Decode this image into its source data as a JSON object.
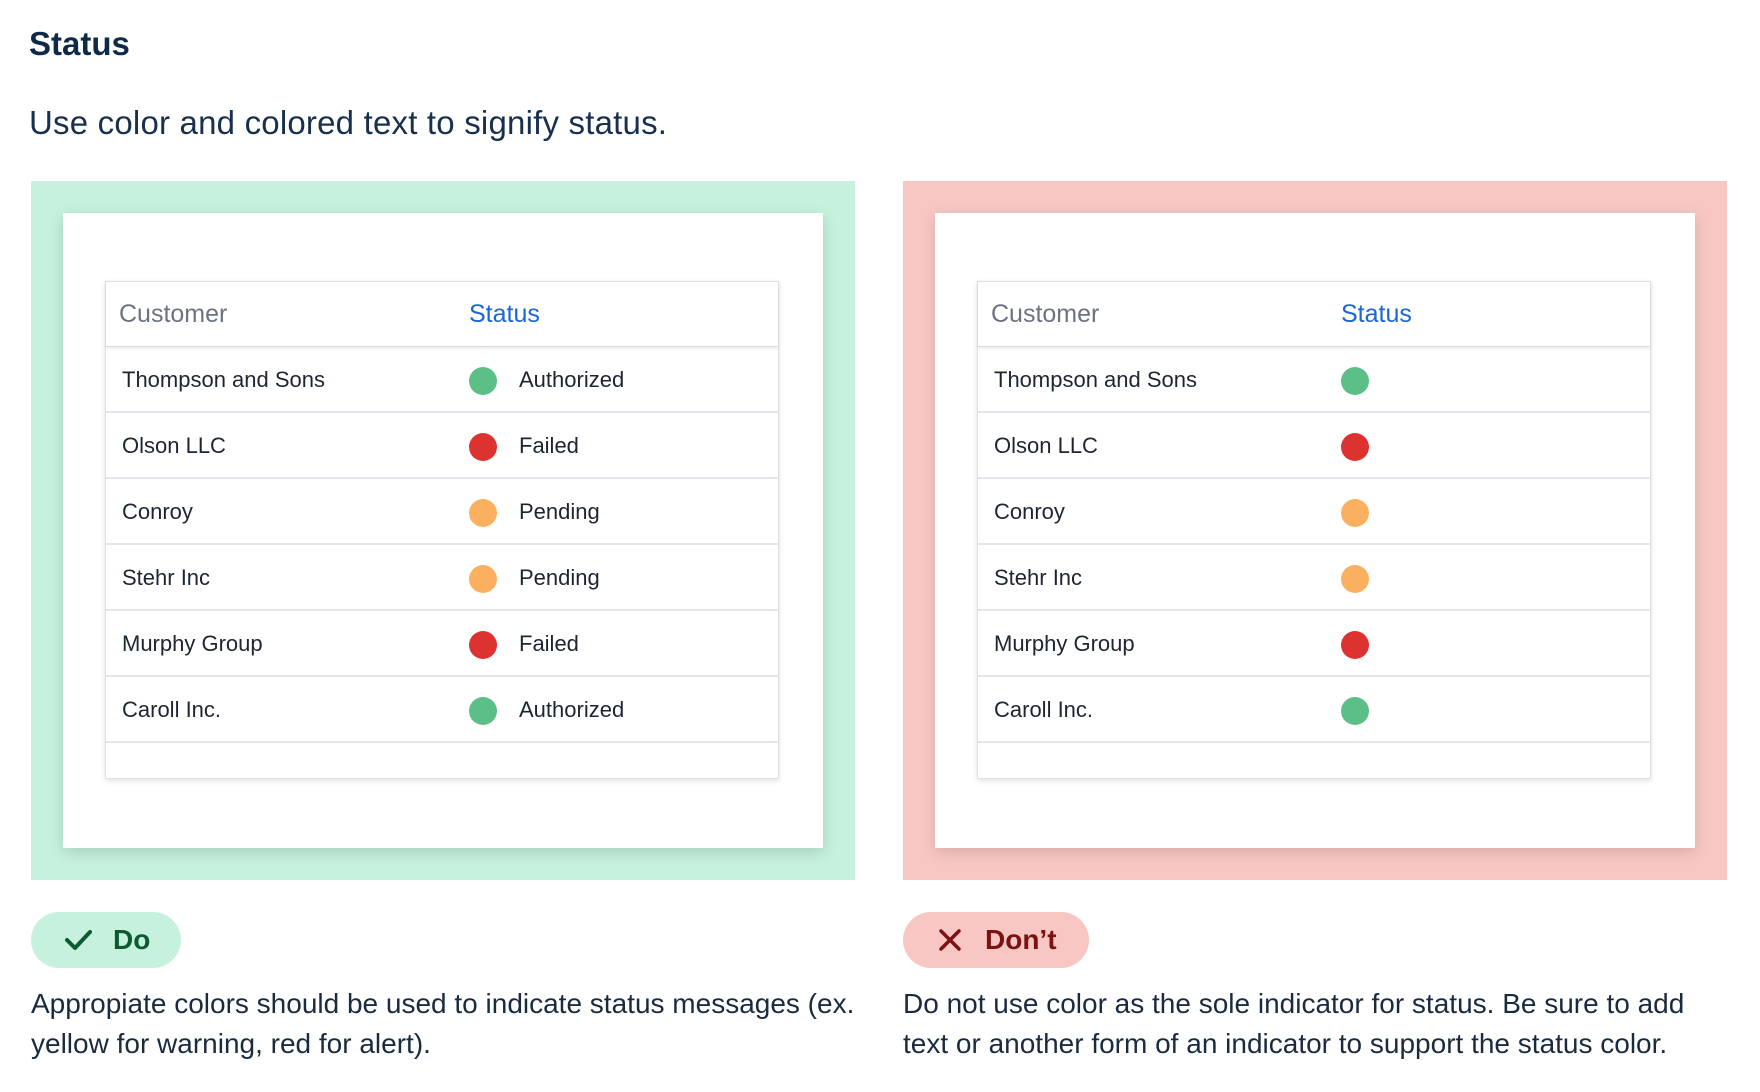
{
  "title": "Status",
  "intro": "Use color and colored text to signify status.",
  "colors": {
    "do_panel": "#c5f1dd",
    "dont_panel": "#f8c7c3",
    "authorized": "#5cbf88",
    "failed": "#dc3230",
    "pending": "#fbb060",
    "status_header": "#1a66d8"
  },
  "do_example": {
    "headers": {
      "customer": "Customer",
      "status": "Status"
    },
    "rows": [
      {
        "customer": "Thompson and Sons",
        "status": "Authorized",
        "indicator": "green"
      },
      {
        "customer": "Olson LLC",
        "status": "Failed",
        "indicator": "red"
      },
      {
        "customer": "Conroy",
        "status": "Pending",
        "indicator": "orange"
      },
      {
        "customer": "Stehr Inc",
        "status": "Pending",
        "indicator": "orange"
      },
      {
        "customer": "Murphy Group",
        "status": "Failed",
        "indicator": "red"
      },
      {
        "customer": "Caroll Inc.",
        "status": "Authorized",
        "indicator": "green"
      }
    ],
    "badge_icon": "check-icon",
    "badge_label": "Do",
    "description": "Appropiate colors should be used to indicate status messages (ex. yellow for warning, red for alert)."
  },
  "dont_example": {
    "headers": {
      "customer": "Customer",
      "status": "Status"
    },
    "rows": [
      {
        "customer": "Thompson and Sons",
        "indicator": "green"
      },
      {
        "customer": "Olson LLC",
        "indicator": "red"
      },
      {
        "customer": "Conroy",
        "indicator": "orange"
      },
      {
        "customer": "Stehr Inc",
        "indicator": "orange"
      },
      {
        "customer": "Murphy Group",
        "indicator": "red"
      },
      {
        "customer": "Caroll Inc.",
        "indicator": "green"
      }
    ],
    "badge_icon": "close-icon",
    "badge_label": "Don’t",
    "description": "Do not use color as the sole indicator for status. Be sure to add text or another form of an indicator to support the status color."
  }
}
